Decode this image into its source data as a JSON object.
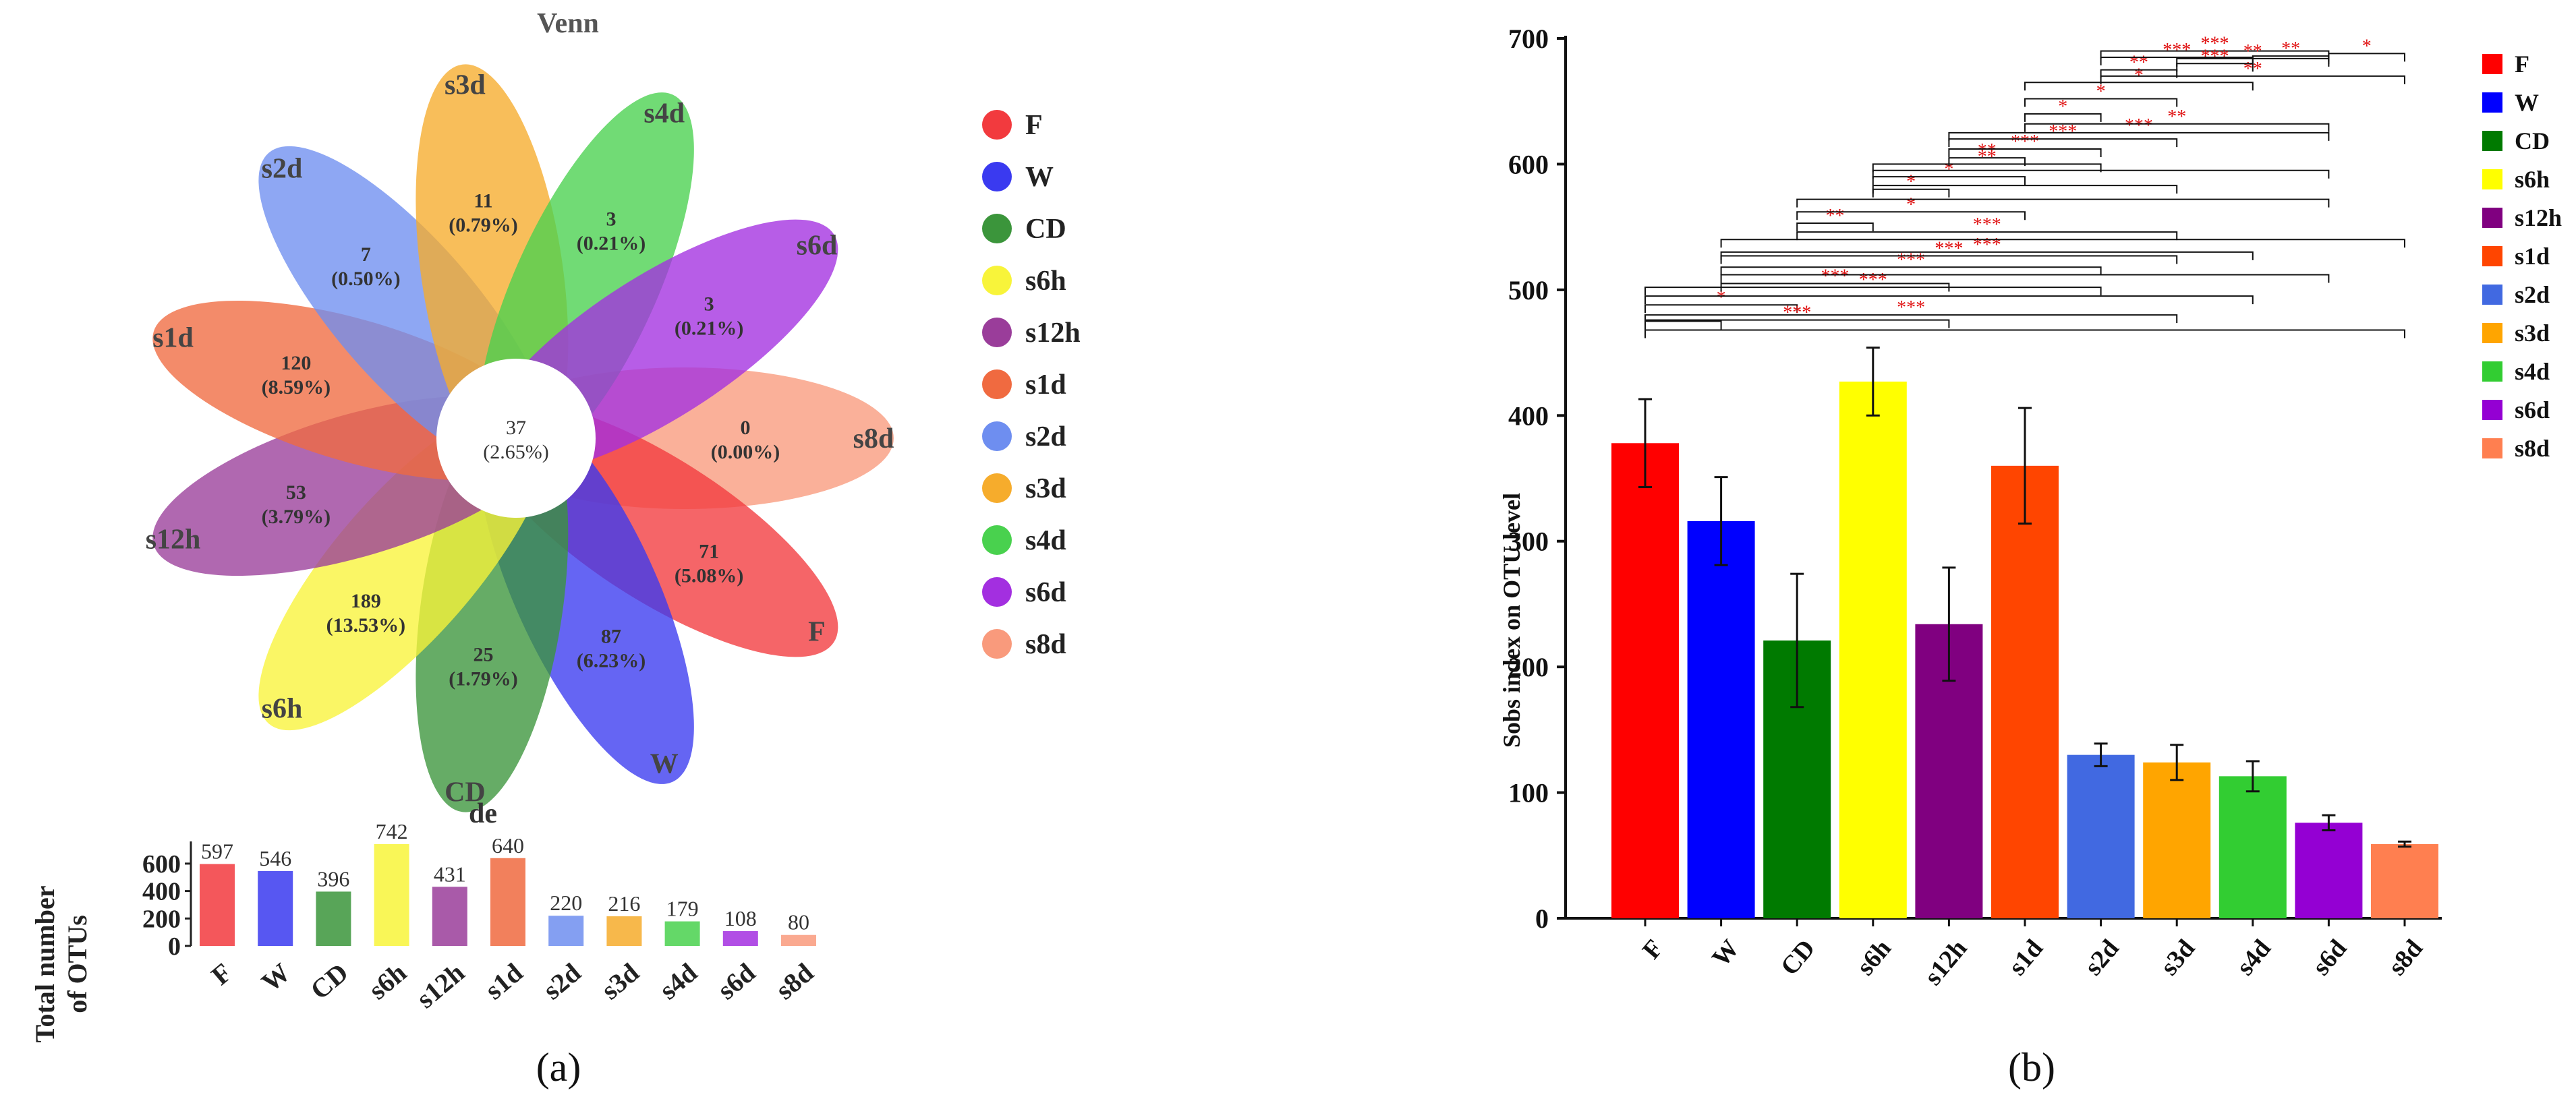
{
  "figure": {
    "panel_a_label": "(a)",
    "panel_b_label": "(b)"
  },
  "chart_data": [
    {
      "type": "venn",
      "title": "Venn",
      "center": {
        "value": "37",
        "percent": "(2.65%)"
      },
      "petals": [
        {
          "group": "s8d",
          "value": "0",
          "percent": "(0.00%)",
          "color": "#f99a7c"
        },
        {
          "group": "F",
          "value": "71",
          "percent": "(5.08%)",
          "color": "#f23a3e"
        },
        {
          "group": "W",
          "value": "87",
          "percent": "(6.23%)",
          "color": "#3a3af0"
        },
        {
          "group": "CD",
          "value": "25",
          "percent": "(1.79%)",
          "color": "#3b953b"
        },
        {
          "group": "s6h",
          "value": "189",
          "percent": "(13.53%)",
          "color": "#f8f43a"
        },
        {
          "group": "s12h",
          "value": "53",
          "percent": "(3.79%)",
          "color": "#9a3d9a"
        },
        {
          "group": "s1d",
          "value": "120",
          "percent": "(8.59%)",
          "color": "#f06a40"
        },
        {
          "group": "s2d",
          "value": "7",
          "percent": "(0.50%)",
          "color": "#6e8ef0"
        },
        {
          "group": "s3d",
          "value": "11",
          "percent": "(0.79%)",
          "color": "#f6ac2c"
        },
        {
          "group": "s4d",
          "value": "3",
          "percent": "(0.21%)",
          "color": "#49d14e"
        },
        {
          "group": "s6d",
          "value": "3",
          "percent": "(0.21%)",
          "color": "#a32fe0"
        }
      ],
      "legend": [
        {
          "label": "F",
          "color": "#f23a3e"
        },
        {
          "label": "W",
          "color": "#3a3af0"
        },
        {
          "label": "CD",
          "color": "#3b953b"
        },
        {
          "label": "s6h",
          "color": "#f8f43a"
        },
        {
          "label": "s12h",
          "color": "#9a3d9a"
        },
        {
          "label": "s1d",
          "color": "#f06a40"
        },
        {
          "label": "s2d",
          "color": "#6e8ef0"
        },
        {
          "label": "s3d",
          "color": "#f6ac2c"
        },
        {
          "label": "s4d",
          "color": "#49d14e"
        },
        {
          "label": "s6d",
          "color": "#a32fe0"
        },
        {
          "label": "s8d",
          "color": "#f99a7c"
        }
      ],
      "stray_label": "de"
    },
    {
      "type": "bar",
      "title": "",
      "ylabel": "Total number of OTUs",
      "ylabel_lines": [
        "Total number",
        "of OTUs"
      ],
      "categories": [
        "F",
        "W",
        "CD",
        "s6h",
        "s12h",
        "s1d",
        "s2d",
        "s3d",
        "s4d",
        "s6d",
        "s8d"
      ],
      "values": [
        597,
        546,
        396,
        742,
        431,
        640,
        220,
        216,
        179,
        108,
        80
      ],
      "value_labels": [
        "597",
        "546",
        "396",
        "742",
        "431",
        "640",
        "220",
        "216",
        "179",
        "108",
        "80"
      ],
      "colors": [
        "#f23a3e",
        "#3a3af0",
        "#3b953b",
        "#f8f43a",
        "#9a3d9a",
        "#f06a40",
        "#6e8ef0",
        "#f6ac2c",
        "#49d14e",
        "#a32fe0",
        "#f99a7c"
      ],
      "ylim": [
        0,
        742
      ],
      "yticks": [
        0,
        200,
        400,
        600
      ]
    },
    {
      "type": "bar",
      "title": "",
      "ylabel": "Sobs index on OTU level",
      "xlabel": "",
      "categories": [
        "F",
        "W",
        "CD",
        "s6h",
        "s12h",
        "s1d",
        "s2d",
        "s3d",
        "s4d",
        "s6d",
        "s8d"
      ],
      "values": [
        378,
        316,
        221,
        427,
        234,
        360,
        130,
        124,
        113,
        76,
        59
      ],
      "errors": [
        35,
        35,
        53,
        27,
        45,
        46,
        9,
        14,
        12,
        6,
        2
      ],
      "colors": [
        "#ff0000",
        "#0000ff",
        "#007a00",
        "#ffff00",
        "#800080",
        "#ff4500",
        "#4169e1",
        "#ffa500",
        "#32cd32",
        "#9400d3",
        "#ff7f50"
      ],
      "ylim": [
        0,
        700
      ],
      "yticks": [
        0,
        100,
        200,
        300,
        400,
        500,
        600,
        700
      ],
      "legend": [
        {
          "label": "F",
          "color": "#ff0000"
        },
        {
          "label": "W",
          "color": "#0000ff"
        },
        {
          "label": "CD",
          "color": "#007a00"
        },
        {
          "label": "s6h",
          "color": "#ffff00"
        },
        {
          "label": "s12h",
          "color": "#800080"
        },
        {
          "label": "s1d",
          "color": "#ff4500"
        },
        {
          "label": "s2d",
          "color": "#4169e1"
        },
        {
          "label": "s3d",
          "color": "#ffa500"
        },
        {
          "label": "s4d",
          "color": "#32cd32"
        },
        {
          "label": "s6d",
          "color": "#9400d3"
        },
        {
          "label": "s8d",
          "color": "#ff7f50"
        }
      ],
      "significance": {
        "color": "#e01010",
        "comparisons": [
          {
            "from": "F",
            "to": "W",
            "label": "",
            "y": 475
          },
          {
            "from": "F",
            "to": "CD",
            "label": "*",
            "y": 488
          },
          {
            "from": "F",
            "to": "s12h",
            "label": "***",
            "y": 476
          },
          {
            "from": "F",
            "to": "s2d",
            "label": "***",
            "y": 502
          },
          {
            "from": "F",
            "to": "s3d",
            "label": "***",
            "y": 480
          },
          {
            "from": "F",
            "to": "s4d",
            "label": "",
            "y": 495
          },
          {
            "from": "F",
            "to": "s8d",
            "label": "",
            "y": 468
          },
          {
            "from": "W",
            "to": "s12h",
            "label": "***",
            "y": 505
          },
          {
            "from": "W",
            "to": "s2d",
            "label": "***",
            "y": 518
          },
          {
            "from": "W",
            "to": "s3d",
            "label": "***",
            "y": 527
          },
          {
            "from": "W",
            "to": "s4d",
            "label": "***",
            "y": 530
          },
          {
            "from": "W",
            "to": "s6d",
            "label": "",
            "y": 512
          },
          {
            "from": "W",
            "to": "s8d",
            "label": "",
            "y": 540
          },
          {
            "from": "CD",
            "to": "s6h",
            "label": "**",
            "y": 553
          },
          {
            "from": "CD",
            "to": "s1d",
            "label": "*",
            "y": 562
          },
          {
            "from": "CD",
            "to": "s3d",
            "label": "***",
            "y": 546
          },
          {
            "from": "CD",
            "to": "s6d",
            "label": "",
            "y": 572
          },
          {
            "from": "s6h",
            "to": "s12h",
            "label": "*",
            "y": 580
          },
          {
            "from": "s6h",
            "to": "s1d",
            "label": "*",
            "y": 590
          },
          {
            "from": "s6h",
            "to": "s2d",
            "label": "**",
            "y": 600
          },
          {
            "from": "s6h",
            "to": "s3d",
            "label": "",
            "y": 583
          },
          {
            "from": "s6h",
            "to": "s6d",
            "label": "",
            "y": 595
          },
          {
            "from": "s12h",
            "to": "s1d",
            "label": "**",
            "y": 605
          },
          {
            "from": "s12h",
            "to": "s2d",
            "label": "***",
            "y": 612
          },
          {
            "from": "s12h",
            "to": "s3d",
            "label": "***",
            "y": 620
          },
          {
            "from": "s12h",
            "to": "s6d",
            "label": "***",
            "y": 625
          },
          {
            "from": "s1d",
            "to": "s2d",
            "label": "*",
            "y": 640
          },
          {
            "from": "s1d",
            "to": "s3d",
            "label": "*",
            "y": 652
          },
          {
            "from": "s1d",
            "to": "s4d",
            "label": "*",
            "y": 665
          },
          {
            "from": "s1d",
            "to": "s6d",
            "label": "**",
            "y": 632
          },
          {
            "from": "s2d",
            "to": "s3d",
            "label": "**",
            "y": 675
          },
          {
            "from": "s2d",
            "to": "s4d",
            "label": "***",
            "y": 685
          },
          {
            "from": "s2d",
            "to": "s6d",
            "label": "***",
            "y": 690
          },
          {
            "from": "s2d",
            "to": "s8d",
            "label": "**",
            "y": 670
          },
          {
            "from": "s3d",
            "to": "s4d",
            "label": "***",
            "y": 680
          },
          {
            "from": "s3d",
            "to": "s6d",
            "label": "**",
            "y": 684
          },
          {
            "from": "s4d",
            "to": "s6d",
            "label": "**",
            "y": 686
          },
          {
            "from": "s6d",
            "to": "s8d",
            "label": "*",
            "y": 688
          }
        ]
      }
    }
  ]
}
